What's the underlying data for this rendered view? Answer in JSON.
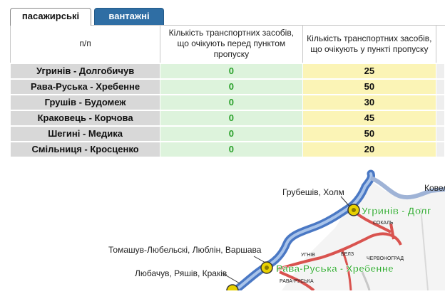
{
  "tabs": [
    {
      "label": "пасажирські",
      "active": true
    },
    {
      "label": "вантажні",
      "active": false
    }
  ],
  "table": {
    "headers": {
      "index": "п/п",
      "before": "Кількість транспортних засобів, що очікують перед пунктом пропуску",
      "at": "Кількість транспортних засобів, що очікують у пункті пропуску"
    },
    "rows": [
      {
        "name": "Угринів - Долгобичув",
        "before": "0",
        "at": "25"
      },
      {
        "name": "Рава-Руська - Хребенне",
        "before": "0",
        "at": "50"
      },
      {
        "name": "Грушів - Будомеж",
        "before": "0",
        "at": "30"
      },
      {
        "name": "Краковець - Корчова",
        "before": "0",
        "at": "45"
      },
      {
        "name": "Шегині - Медика",
        "before": "0",
        "at": "50"
      },
      {
        "name": "Смільниця - Кросценко",
        "before": "0",
        "at": "20"
      }
    ]
  },
  "map": {
    "labels": {
      "hrubieszow": "Грубешів, Холм",
      "kovel": "Ковел",
      "tomaszow": "Томашув-Любельскі, Люблін, Варшава",
      "lubaczow": "Любачув, Ряшів, Краків",
      "uhryniv": "Угринів - Долг",
      "rava": "Рава-Руська - Хребенне",
      "sokal": "СОКАЛЬ",
      "uhniv": "УГНІВ",
      "belz": "БЕЛЗ",
      "chervonohrad": "ЧЕРВОНОГРАД",
      "ravaruska_small": "РАВА-РУСЬКА"
    },
    "colors": {
      "border": "#4a78c4",
      "road": "#d9534f",
      "checkpoint": "#e8d100",
      "label_green": "#2fa82f"
    }
  }
}
